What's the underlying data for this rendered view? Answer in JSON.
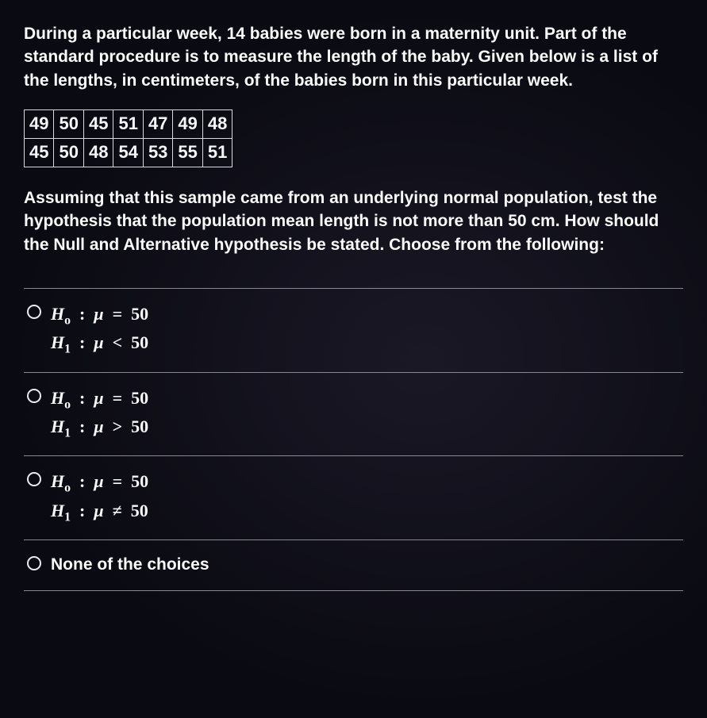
{
  "intro_paragraph": "During a particular week, 14 babies were born in a maternity unit. Part of the standard procedure is to measure the length of the baby. Given below is a list of the lengths, in centimeters, of the babies born in this particular week.",
  "data_table": {
    "rows": [
      [
        "49",
        "50",
        "45",
        "51",
        "47",
        "49",
        "48"
      ],
      [
        "45",
        "50",
        "48",
        "54",
        "53",
        "55",
        "51"
      ]
    ],
    "border_color": "#d8d8e0",
    "cell_font_size_pt": 16,
    "cell_font_weight": 700
  },
  "question_paragraph": "Assuming that this sample came from an underlying normal population, test the hypothesis that the population mean length is not more than 50 cm. How should the Null and Alternative hypothesis be stated. Choose from the following:",
  "options": [
    {
      "h0": "H_o : μ = 50",
      "h1": "H_1 : μ < 50",
      "rel": "<"
    },
    {
      "h0": "H_o : μ = 50",
      "h1": "H_1 : μ > 50",
      "rel": ">"
    },
    {
      "h0": "H_o : μ = 50",
      "h1": "H_1 : μ ≠ 50",
      "rel": "≠"
    },
    {
      "text": "None of the choices"
    }
  ],
  "style": {
    "background_color": "#0a0a12",
    "text_color": "#fafafa",
    "divider_color": "#888895",
    "radio_border_color": "#eaeaf0",
    "body_font_size_pt": 16,
    "body_font_weight": 600,
    "option_math_font_family": "Cambria Math",
    "option_math_font_style": "italic",
    "option_math_font_weight": 700
  },
  "labels": {
    "mu": "μ",
    "eq": "=",
    "fifty": "50",
    "Ho_H": "H",
    "Ho_sub": "o",
    "H1_H": "H",
    "H1_sub": "1",
    "colon": ":"
  }
}
